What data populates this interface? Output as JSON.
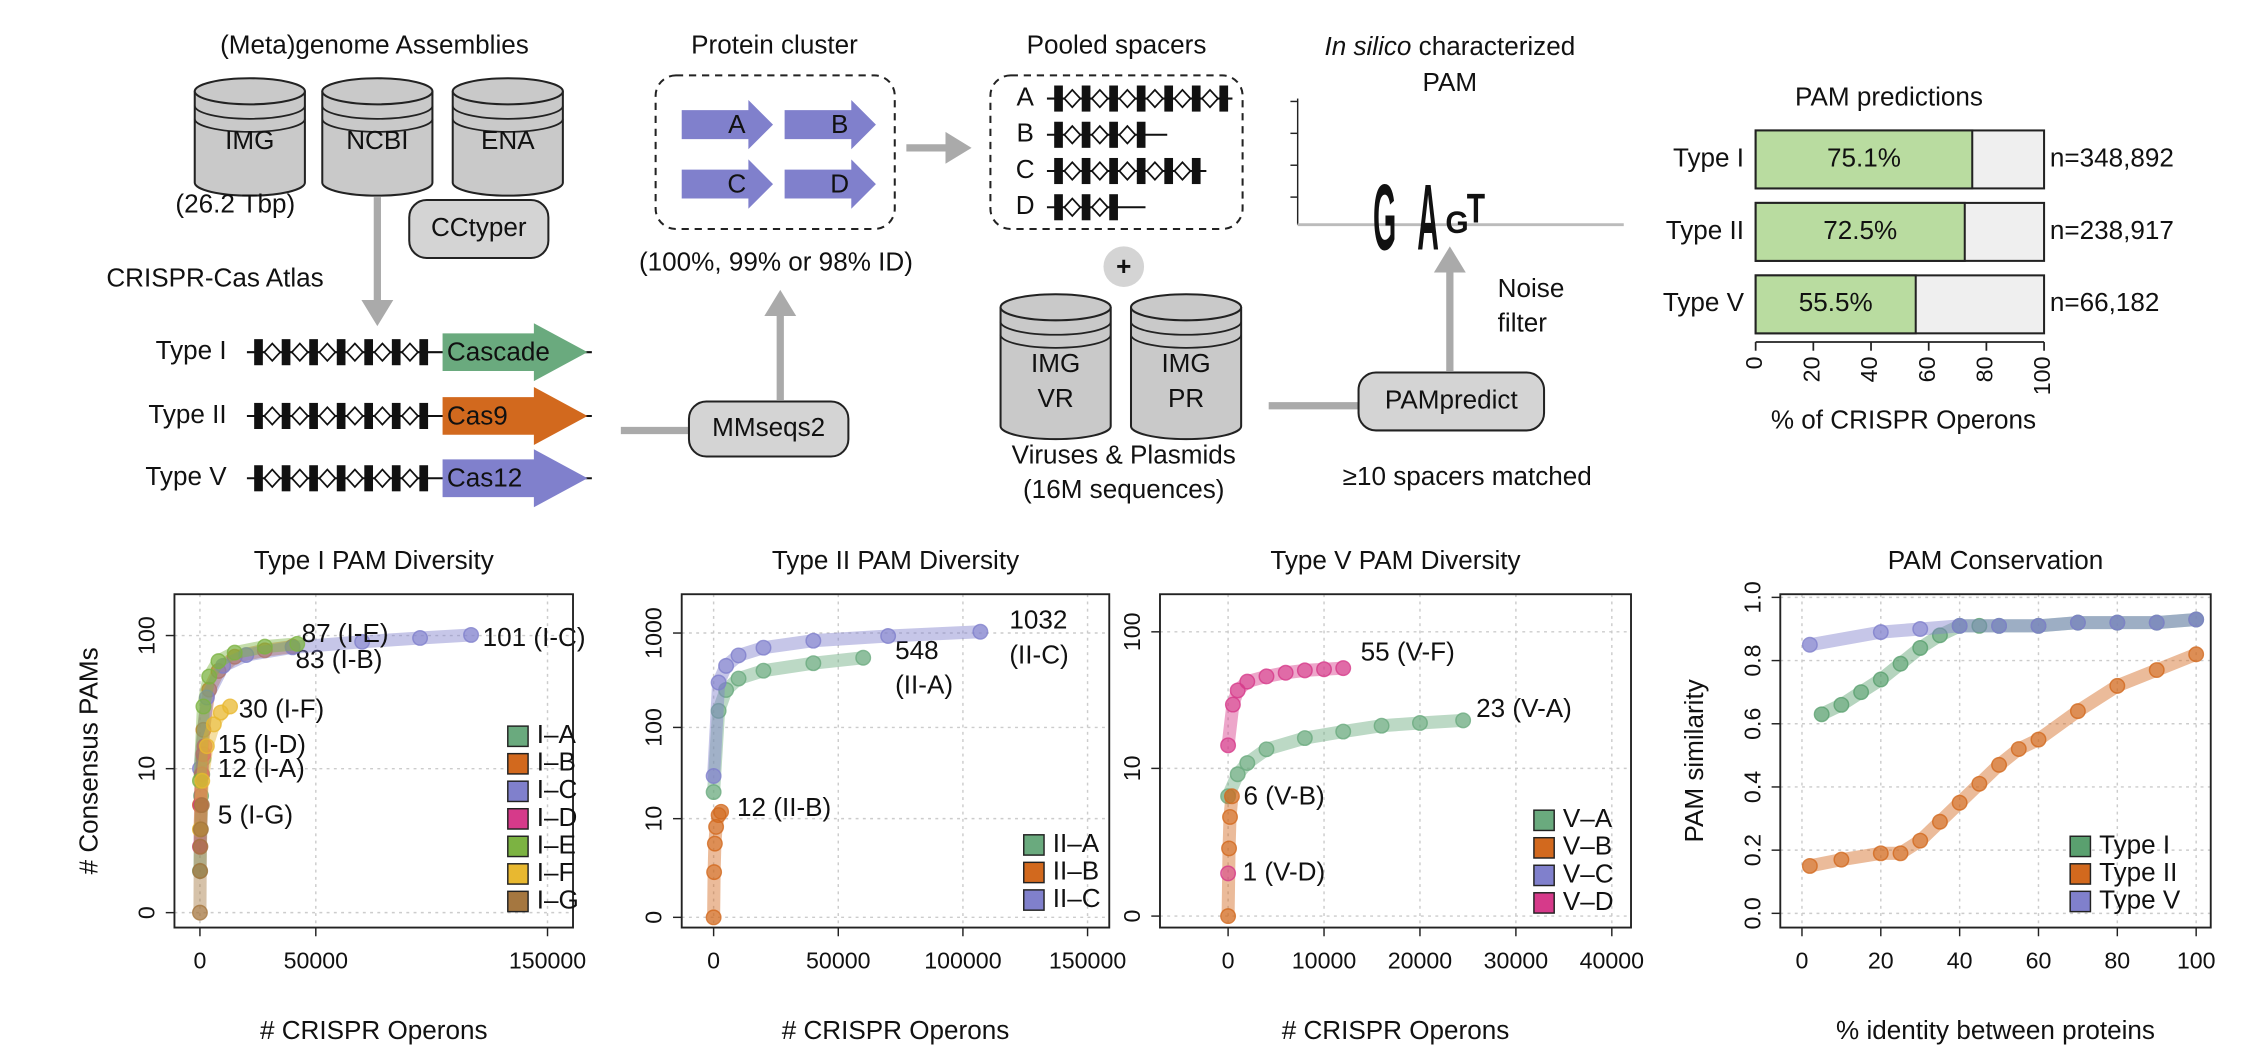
{
  "diagram": {
    "assemblies_title": "(Meta)genome Assemblies",
    "databases": [
      "IMG",
      "NCBI",
      "ENA"
    ],
    "assembly_size": "(26.2 Tbp)",
    "cctyper": "CCtyper",
    "atlas": "CRISPR-Cas Atlas",
    "loci": [
      {
        "type": "Type I",
        "effector": "Cascade",
        "color": "#6aaa7e"
      },
      {
        "type": "Type II",
        "effector": "Cas9",
        "color": "#d2691e"
      },
      {
        "type": "Type V",
        "effector": "Cas12",
        "color": "#8080cc"
      }
    ],
    "mmseqs": "MMseqs2",
    "cluster_title": "Protein cluster",
    "cluster_members": [
      "A",
      "B",
      "C",
      "D"
    ],
    "cluster_id": "(100%, 99% or 98% ID)",
    "spacers_title": "Pooled spacers",
    "spacer_rows": [
      "A",
      "B",
      "C",
      "D"
    ],
    "plus": "+",
    "target_dbs": [
      [
        "IMG",
        "VR"
      ],
      [
        "IMG",
        "PR"
      ]
    ],
    "targets_caption": [
      "Viruses & Plasmids",
      "(16M sequences)"
    ],
    "pampredict": "PAMpredict",
    "spacers_matched": "≥10 spacers matched",
    "noise_filter": [
      "Noise",
      "filter"
    ],
    "logo_title_italic": "In silico",
    "logo_title_rest": " characterized",
    "logo_title_line2": "PAM",
    "logo_letters": [
      {
        "letter": "G",
        "color": "#e8a33a"
      },
      {
        "letter": "A",
        "color": "#e8a33a"
      },
      {
        "letter": "G",
        "color": "#6aaa7e"
      },
      {
        "letter": "T",
        "color": "#d9362b"
      }
    ]
  },
  "chart_data": [
    {
      "type": "bar",
      "title": "PAM predictions",
      "categories": [
        "Type I",
        "Type II",
        "Type V"
      ],
      "values": [
        75.1,
        72.5,
        55.5
      ],
      "value_labels": [
        "75.1%",
        "72.5%",
        "55.5%"
      ],
      "n_labels": [
        "n=348,892",
        "n=238,917",
        "n=66,182"
      ],
      "color": "#b9dca0",
      "xlim": [
        0,
        100
      ],
      "xticks": [
        0,
        20,
        40,
        60,
        80,
        100
      ],
      "xlabel": "% of CRISPR Operons"
    },
    {
      "type": "scatter",
      "title": "Type I PAM Diversity",
      "xlabel": "# CRISPR Operons",
      "ylabel": "# Consensus PAMs",
      "yscale": "log1p",
      "grid": true,
      "xlim": [
        -11000,
        161000
      ],
      "xticks": [
        0,
        50000,
        150000
      ],
      "ylim": [
        -0.22,
        200
      ],
      "yticks": [
        0,
        10,
        100
      ],
      "series": [
        {
          "name": "I–A",
          "color": "#6aaa7e",
          "label": "12 (I-A)",
          "x": [
            0,
            200,
            500,
            1000,
            1500
          ],
          "values": [
            1,
            3,
            6,
            9,
            12
          ]
        },
        {
          "name": "I–B",
          "color": "#d2691e",
          "label": "83 (I-B)",
          "x": [
            0,
            1500,
            4000,
            8000,
            15000,
            28000,
            40000
          ],
          "values": [
            5,
            20,
            40,
            55,
            70,
            78,
            83
          ]
        },
        {
          "name": "I–C",
          "color": "#8080cc",
          "label": "101 (I-C)",
          "x": [
            0,
            3000,
            10000,
            20000,
            40000,
            70000,
            95000,
            117000
          ],
          "values": [
            10,
            35,
            60,
            72,
            82,
            90,
            96,
            101
          ]
        },
        {
          "name": "I–D",
          "color": "#d63a8a",
          "label": "15 (I-D)",
          "x": [
            0,
            300,
            800,
            1500,
            2000
          ],
          "values": [
            2,
            5,
            9,
            13,
            15
          ]
        },
        {
          "name": "I–E",
          "color": "#7cb342",
          "label": "87 (I-E)",
          "x": [
            0,
            1500,
            4000,
            8000,
            15000,
            28000,
            42000
          ],
          "values": [
            8,
            30,
            50,
            65,
            75,
            83,
            87
          ]
        },
        {
          "name": "I–F",
          "color": "#e8b830",
          "label": "30 (I-F)",
          "x": [
            0,
            1000,
            3000,
            6000,
            9000,
            13000
          ],
          "values": [
            3,
            8,
            15,
            22,
            27,
            30
          ]
        },
        {
          "name": "I–G",
          "color": "#a57740",
          "label": "5 (I-G)",
          "x": [
            0,
            100,
            200,
            400,
            800
          ],
          "values": [
            0,
            1,
            2,
            3,
            5
          ]
        }
      ]
    },
    {
      "type": "scatter",
      "title": "Type II PAM Diversity",
      "xlabel": "# CRISPR Operons",
      "yscale": "log1p",
      "grid": true,
      "xlim": [
        -12800,
        158700
      ],
      "xticks": [
        0,
        50000,
        100000,
        150000
      ],
      "ylim": [
        -0.22,
        2570
      ],
      "yticks": [
        0,
        10,
        100,
        1000
      ],
      "series": [
        {
          "name": "II–A",
          "color": "#6aaa7e",
          "label": [
            "548",
            "(II-A)"
          ],
          "x": [
            0,
            2000,
            5000,
            10000,
            20000,
            40000,
            60000
          ],
          "values": [
            20,
            150,
            250,
            330,
            400,
            480,
            548
          ]
        },
        {
          "name": "II–B",
          "color": "#d2691e",
          "label": "12 (II-B)",
          "x": [
            0,
            200,
            500,
            1000,
            2000,
            3000
          ],
          "values": [
            0,
            2,
            5,
            8,
            11,
            12
          ]
        },
        {
          "name": "II–C",
          "color": "#8080cc",
          "label": [
            "1032",
            "(II-C)"
          ],
          "x": [
            0,
            2000,
            5000,
            10000,
            20000,
            40000,
            70000,
            107000
          ],
          "values": [
            30,
            300,
            450,
            580,
            700,
            830,
            930,
            1032
          ]
        }
      ]
    },
    {
      "type": "scatter",
      "title": "Type V PAM Diversity",
      "xlabel": "# CRISPR Operons",
      "yscale": "log1p",
      "grid": true,
      "xlim": [
        -7100,
        42000
      ],
      "xticks": [
        0,
        10000,
        20000,
        30000,
        40000
      ],
      "ylim": [
        -0.17,
        185
      ],
      "yticks": [
        0,
        10,
        100
      ],
      "series": [
        {
          "name": "V–A",
          "color": "#6aaa7e",
          "label": "23 (V-A)",
          "x": [
            0,
            1000,
            2000,
            4000,
            8000,
            12000,
            16000,
            20000,
            24500
          ],
          "values": [
            6,
            9,
            11,
            14,
            17,
            19,
            21,
            22,
            23
          ]
        },
        {
          "name": "V–B",
          "color": "#d2691e",
          "label": "6 (V-B)",
          "x": [
            0,
            100,
            200,
            400
          ],
          "values": [
            0,
            2,
            4,
            6
          ]
        },
        {
          "name": "V–C",
          "color": "#8080cc",
          "x": [],
          "values": []
        },
        {
          "name": "V–D",
          "color": "#d63a8a",
          "label": "1 (V-D)",
          "x": [
            0
          ],
          "values": [
            1
          ]
        },
        {
          "name": "V-F",
          "color": "#d63a8a",
          "in_legend": false,
          "label": "55 (V-F)",
          "x": [
            0,
            500,
            1000,
            2000,
            4000,
            6000,
            8000,
            10000,
            12000
          ],
          "values": [
            15,
            30,
            38,
            44,
            48,
            51,
            53,
            54,
            55
          ]
        }
      ]
    },
    {
      "type": "scatter",
      "title": "PAM Conservation",
      "xlabel": "% identity between proteins",
      "ylabel": "PAM similarity",
      "yscale": "linear",
      "grid": true,
      "xlim": [
        -5.5,
        103.7
      ],
      "xticks": [
        0,
        20,
        40,
        60,
        80,
        100
      ],
      "ylim": [
        -0.045,
        1.01
      ],
      "yticks": [
        {
          "value": 0,
          "label": "0.0"
        },
        {
          "value": 0.2,
          "label": "0.2"
        },
        {
          "value": 0.4,
          "label": "0.4"
        },
        {
          "value": 0.6,
          "label": "0.6"
        },
        {
          "value": 0.8,
          "label": "0.8"
        },
        {
          "value": 1,
          "label": "1.0"
        }
      ],
      "series": [
        {
          "name": "Type I",
          "color": "#5aa06f",
          "x": [
            5,
            10,
            15,
            20,
            25,
            30,
            35,
            40,
            45,
            50,
            60,
            70,
            80,
            90,
            100
          ],
          "values": [
            0.63,
            0.66,
            0.7,
            0.74,
            0.79,
            0.84,
            0.88,
            0.91,
            0.91,
            0.91,
            0.91,
            0.92,
            0.92,
            0.92,
            0.93
          ]
        },
        {
          "name": "Type II",
          "color": "#d2691e",
          "x": [
            2,
            10,
            20,
            25,
            30,
            35,
            40,
            45,
            50,
            55,
            60,
            70,
            80,
            90,
            100
          ],
          "values": [
            0.15,
            0.17,
            0.19,
            0.19,
            0.23,
            0.29,
            0.35,
            0.41,
            0.47,
            0.52,
            0.55,
            0.64,
            0.72,
            0.77,
            0.82
          ]
        },
        {
          "name": "Type V",
          "color": "#8080cc",
          "x": [
            2,
            20,
            30,
            40,
            50,
            60,
            70,
            80,
            90,
            100
          ],
          "values": [
            0.85,
            0.89,
            0.9,
            0.91,
            0.91,
            0.91,
            0.92,
            0.92,
            0.92,
            0.93
          ]
        }
      ]
    }
  ]
}
